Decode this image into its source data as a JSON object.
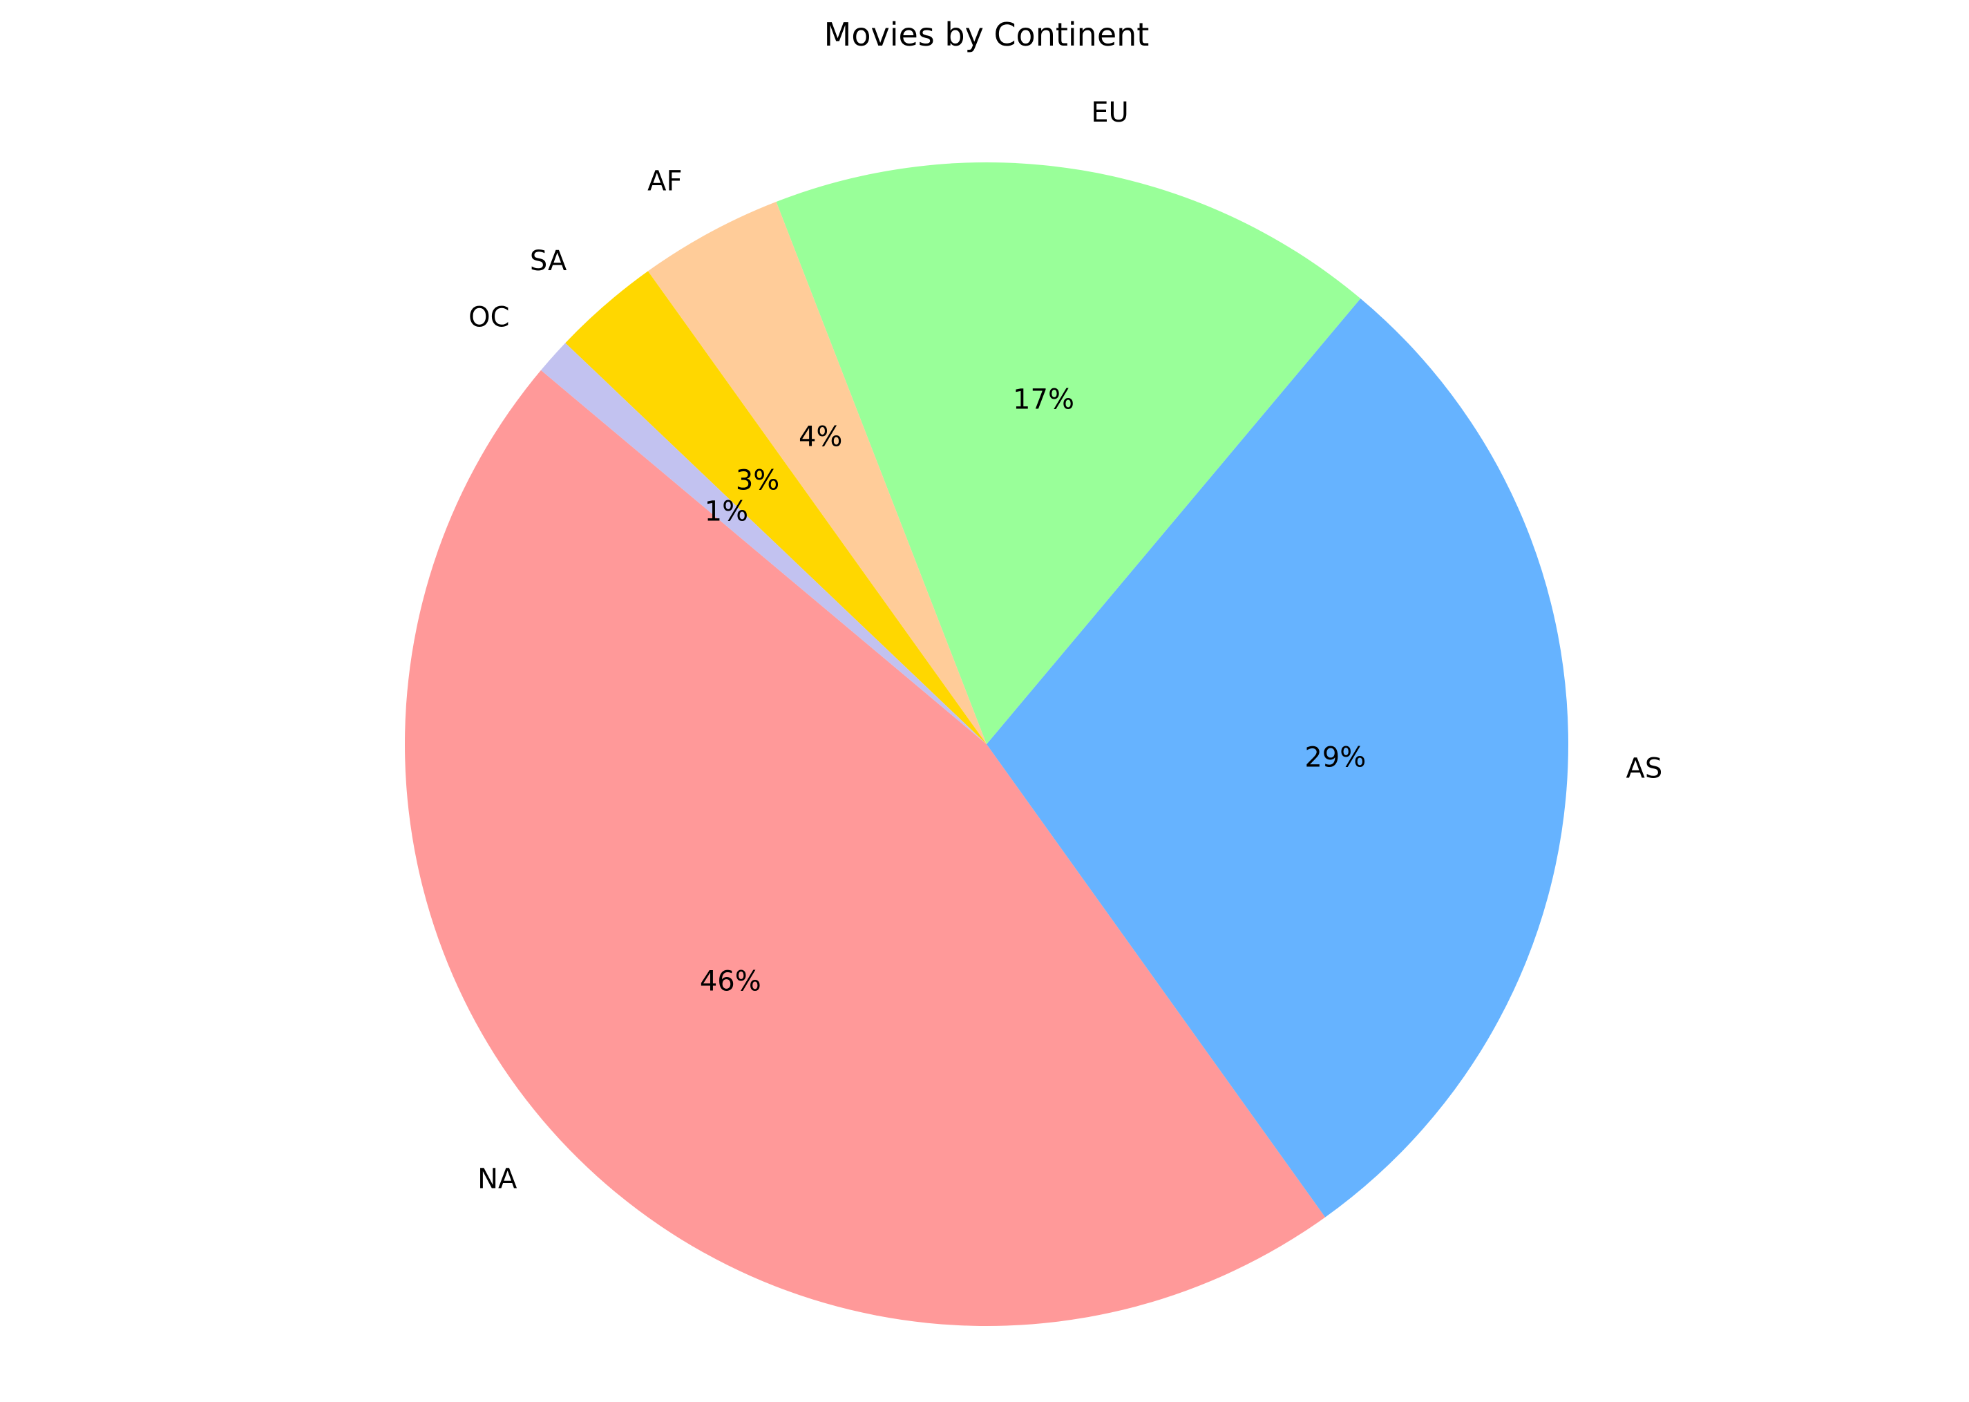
{
  "chart_data": {
    "type": "pie",
    "title": "Movies by Continent",
    "slices": [
      {
        "label": "NA",
        "value": 46,
        "pct_label": "46%",
        "color": "#ff9999"
      },
      {
        "label": "AS",
        "value": 29,
        "pct_label": "29%",
        "color": "#66b3ff"
      },
      {
        "label": "EU",
        "value": 17,
        "pct_label": "17%",
        "color": "#99ff99"
      },
      {
        "label": "AF",
        "value": 4,
        "pct_label": "4%",
        "color": "#ffcc99"
      },
      {
        "label": "SA",
        "value": 3,
        "pct_label": "3%",
        "color": "#ffd700"
      },
      {
        "label": "OC",
        "value": 1,
        "pct_label": "1%",
        "color": "#c2c2f0"
      }
    ],
    "start_angle_deg": 140,
    "direction": "counterclockwise",
    "legend": "none"
  }
}
